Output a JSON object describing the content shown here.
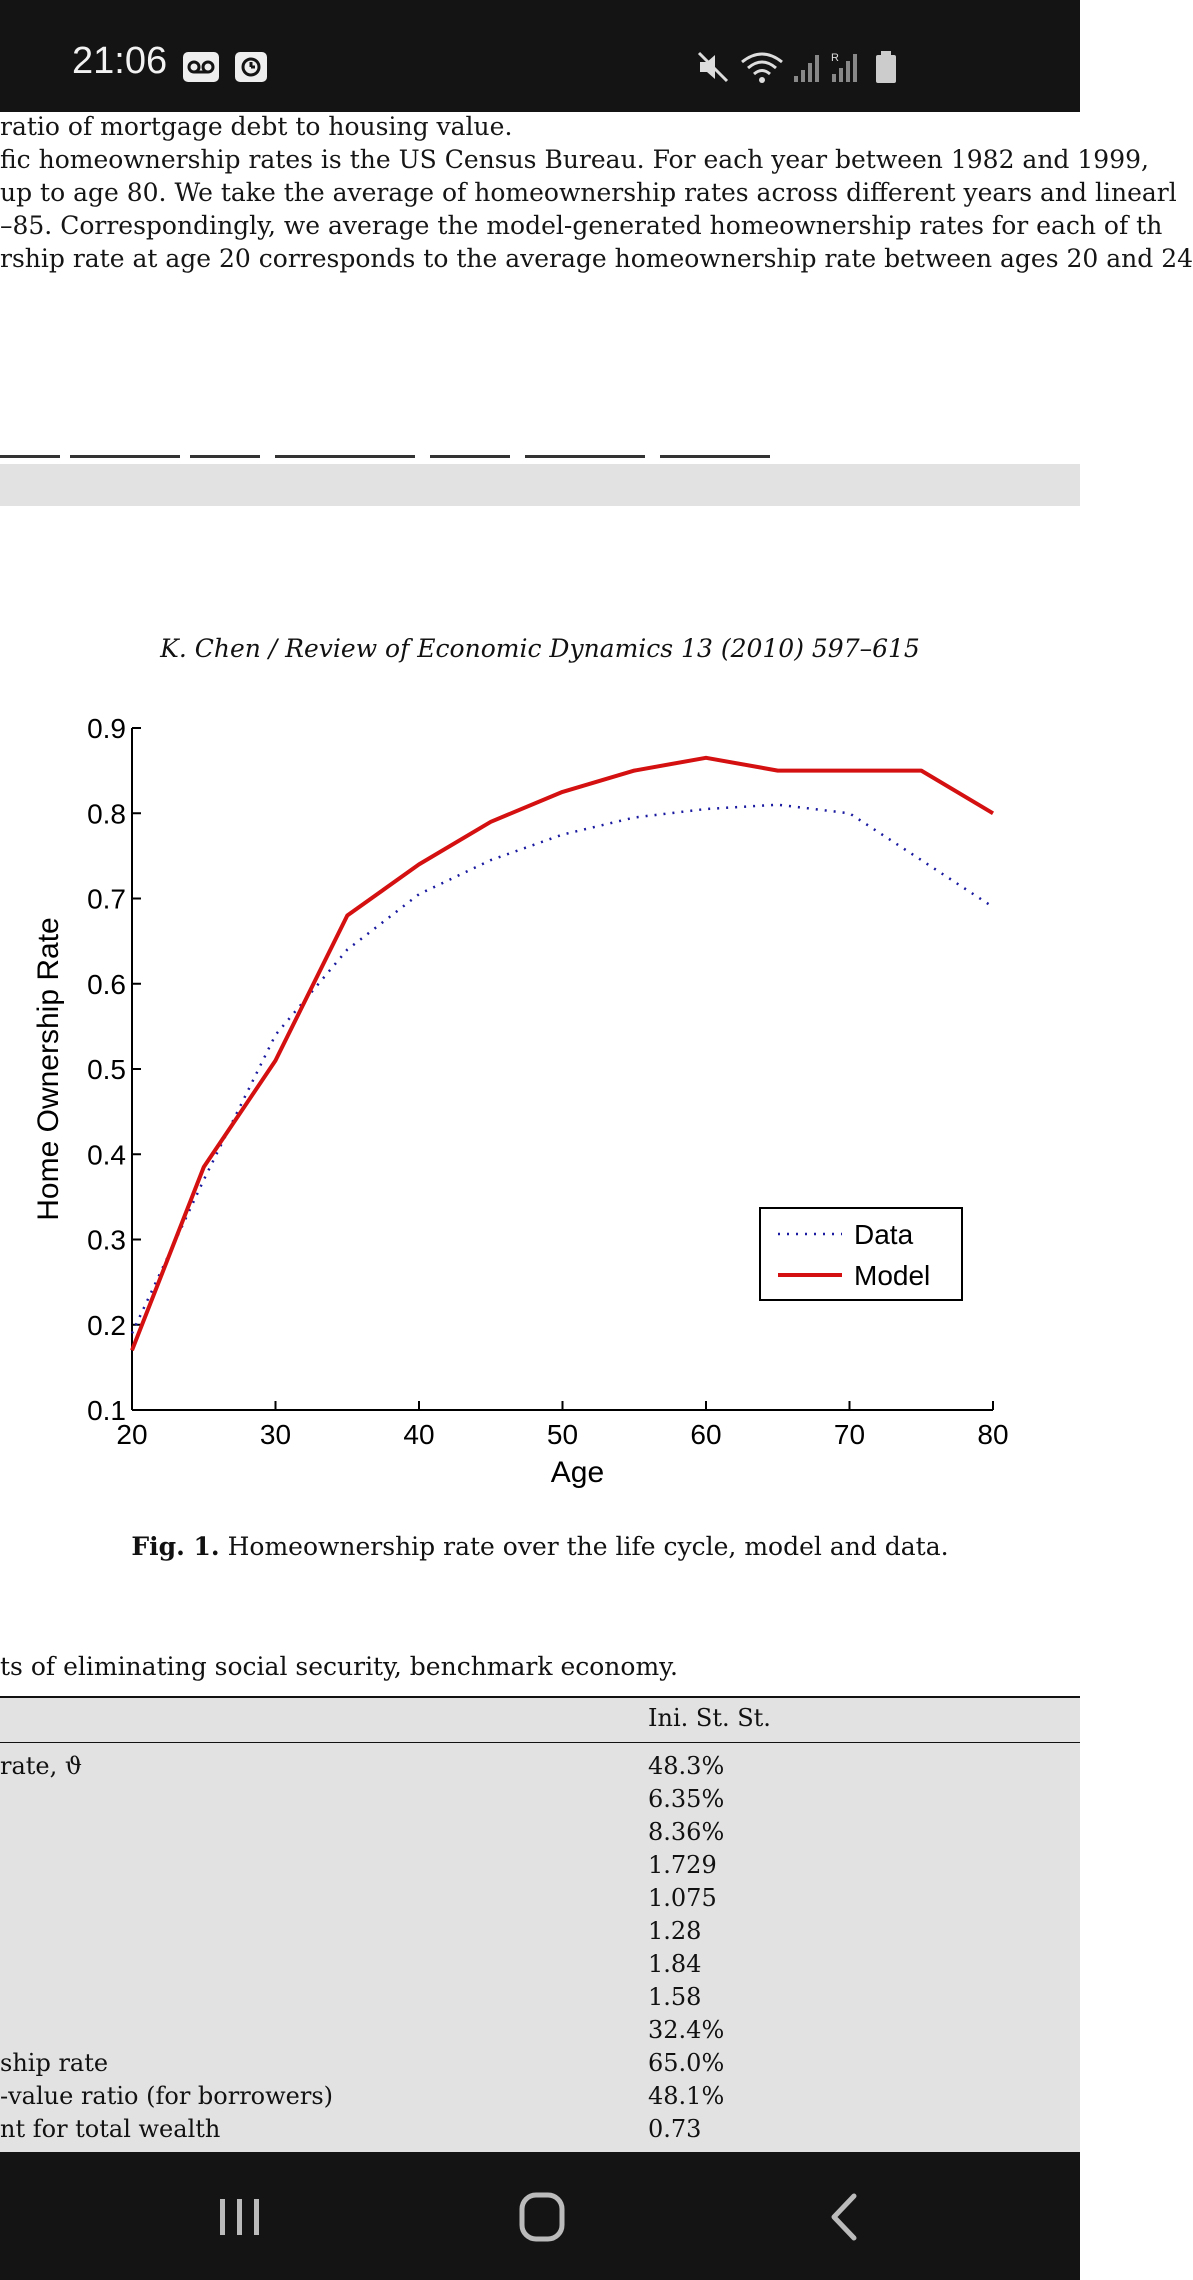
{
  "status_bar": {
    "time": "21:06",
    "left_icons": [
      "voicemail-icon",
      "alarm-icon"
    ],
    "right_icons": [
      "mute-icon",
      "wifi-icon",
      "signal-icon",
      "signal-roaming-icon",
      "battery-icon"
    ]
  },
  "document": {
    "top_lines": [
      "ratio of mortgage debt to housing value.",
      "fic homeownership rates is the US Census Bureau. For each year between 1982 and 1999,",
      "up to age 80. We take the average of homeownership rates across different years and linearl",
      "–85. Correspondingly, we average the model-generated homeownership rates for each of th",
      "rship rate at age 20 corresponds to the average homeownership rate between ages 20 and 24"
    ],
    "running_head": "K. Chen / Review of Economic Dynamics 13 (2010) 597–615",
    "caption_label": "Fig. 1.",
    "caption_text": "Homeownership rate over the life cycle, model and data.",
    "table_title": "ts of eliminating social security, benchmark economy.",
    "table_column_header": "Ini. St. St.",
    "table_rows": [
      {
        "label": "rate, ϑ",
        "value": "48.3%"
      },
      {
        "label": "",
        "value": "6.35%"
      },
      {
        "label": "",
        "value": "8.36%"
      },
      {
        "label": "",
        "value": "1.729"
      },
      {
        "label": "",
        "value": "1.075"
      },
      {
        "label": "",
        "value": "1.28"
      },
      {
        "label": "",
        "value": "1.84"
      },
      {
        "label": "",
        "value": "1.58"
      },
      {
        "label": "",
        "value": "32.4%"
      },
      {
        "label": "ship rate",
        "value": "65.0%"
      },
      {
        "label": "-value ratio (for borrowers)",
        "value": "48.1%"
      },
      {
        "label": "nt for total wealth",
        "value": "0.73"
      }
    ]
  },
  "chart_data": {
    "type": "line",
    "title": "",
    "xlabel": "Age",
    "ylabel": "Home Ownership Rate",
    "xlim": [
      20,
      80
    ],
    "ylim": [
      0.1,
      0.9
    ],
    "xticks": [
      "20",
      "30",
      "40",
      "50",
      "60",
      "70",
      "80"
    ],
    "yticks": [
      "0.1",
      "0.2",
      "0.3",
      "0.4",
      "0.5",
      "0.6",
      "0.7",
      "0.8",
      "0.9"
    ],
    "grid": false,
    "legend_position": "bottom-right",
    "series": [
      {
        "name": "Data",
        "style": "dotted",
        "color": "#1a1aa0",
        "x": [
          20,
          25,
          30,
          35,
          40,
          45,
          50,
          55,
          60,
          65,
          70,
          75,
          80
        ],
        "y": [
          0.19,
          0.37,
          0.54,
          0.64,
          0.705,
          0.745,
          0.775,
          0.795,
          0.805,
          0.81,
          0.8,
          0.745,
          0.69
        ]
      },
      {
        "name": "Model",
        "style": "solid",
        "color": "#d41010",
        "x": [
          20,
          25,
          30,
          35,
          40,
          45,
          50,
          55,
          60,
          65,
          70,
          75,
          80
        ],
        "y": [
          0.17,
          0.385,
          0.51,
          0.68,
          0.74,
          0.79,
          0.825,
          0.85,
          0.865,
          0.85,
          0.85,
          0.85,
          0.8
        ]
      }
    ]
  }
}
